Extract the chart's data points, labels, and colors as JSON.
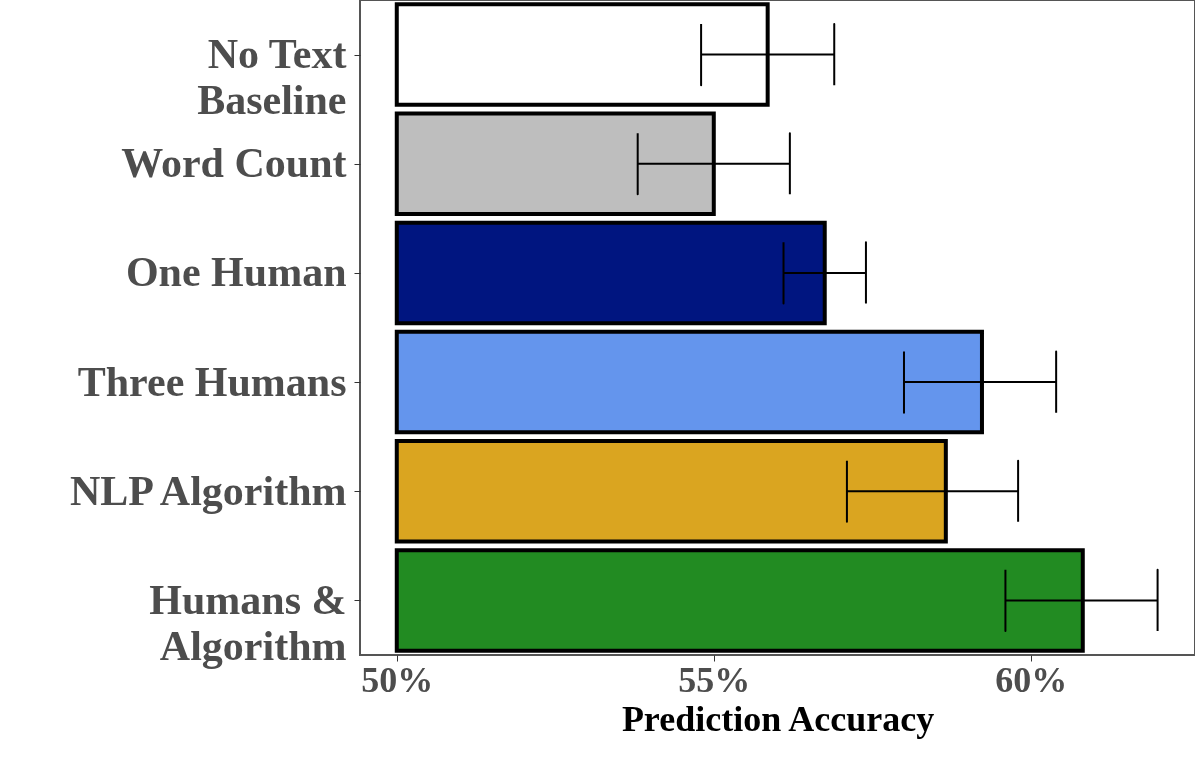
{
  "chart_data": {
    "type": "bar",
    "orientation": "horizontal",
    "xlabel": "Prediction Accuracy",
    "categories": [
      "No Text\nBaseline",
      "Word Count",
      "One Human",
      "Three Humans",
      "NLP Algorithm",
      "Humans &\nAlgorithm"
    ],
    "base": [
      50,
      50,
      50,
      50,
      50,
      50
    ],
    "values": [
      5.85,
      5.0,
      6.75,
      9.23,
      8.66,
      10.82
    ],
    "colors": [
      "#ffffff",
      "#bebebe",
      "#001580",
      "#6495ed",
      "#daa520",
      "#228b22"
    ],
    "errors": [
      [
        54.8,
        56.9
      ],
      [
        53.8,
        56.2
      ],
      [
        56.1,
        57.4
      ],
      [
        58.0,
        60.4
      ],
      [
        57.1,
        59.8
      ],
      [
        59.6,
        62.0
      ]
    ],
    "xlim": [
      49.42,
      62.59
    ],
    "xticks": [
      {
        "value": 50,
        "label": "50%"
      },
      {
        "value": 55,
        "label": "55%"
      },
      {
        "value": 60,
        "label": "60%"
      }
    ],
    "grid": false
  }
}
